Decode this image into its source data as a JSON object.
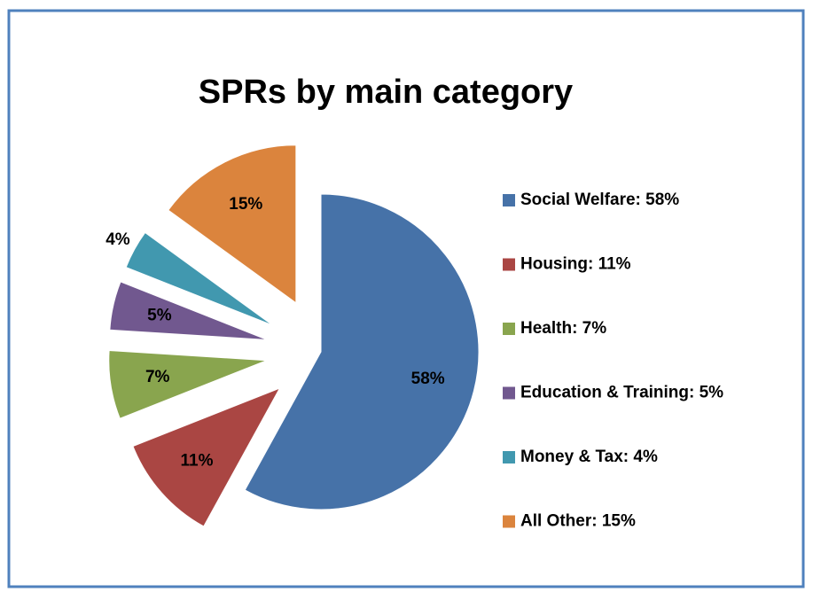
{
  "chart_data": {
    "type": "pie",
    "title": "SPRs by main category",
    "categories": [
      "Social Welfare: 58%",
      "Housing: 11%",
      "Health: 7%",
      "Education & Training: 5%",
      "Money & Tax: 4%",
      "All Other: 15%"
    ],
    "values": [
      58,
      11,
      7,
      5,
      4,
      15
    ],
    "value_labels": [
      "58%",
      "11%",
      "7%",
      "5%",
      "4%",
      "15%"
    ],
    "colors": [
      "#4672a8",
      "#aa4643",
      "#89a54e",
      "#71588f",
      "#4198af",
      "#db843d"
    ],
    "legend": "right"
  }
}
